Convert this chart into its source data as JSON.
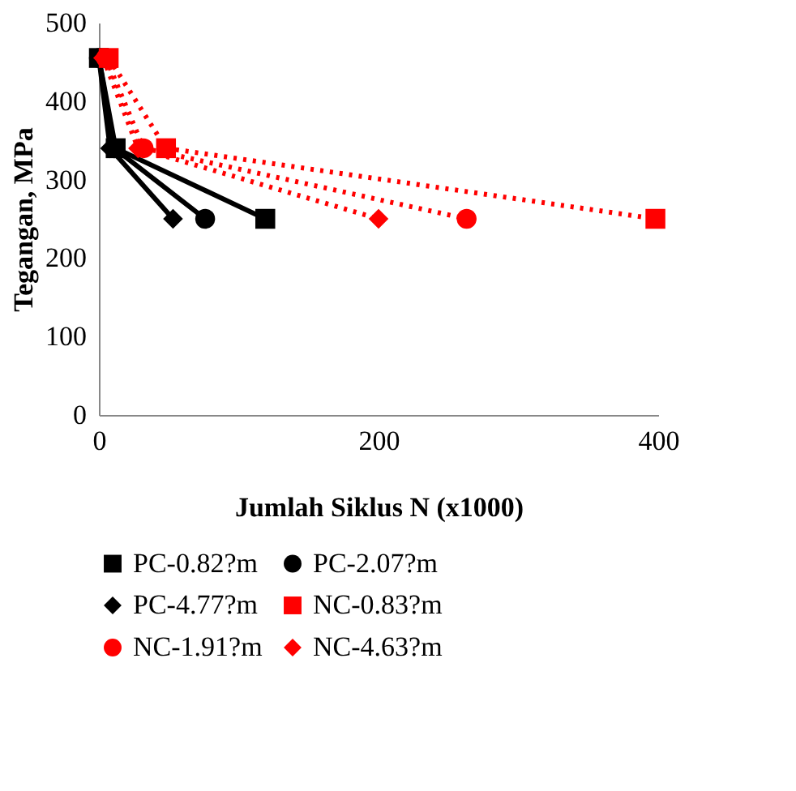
{
  "chart_data": {
    "type": "line",
    "xlabel": "Jumlah Siklus N (x1000)",
    "ylabel": "Tegangan, MPa",
    "xlim": [
      0,
      400
    ],
    "xticks": [
      0,
      200,
      400
    ],
    "ylim": [
      0,
      500
    ],
    "yticks": [
      0,
      100,
      200,
      300,
      400,
      500
    ],
    "grid": false,
    "legend": "bottom",
    "series": [
      {
        "name": "PC-0.82?m",
        "color": "#000000",
        "marker": "square",
        "line_style": "solid",
        "x": [
          0,
          12,
          119
        ],
        "values": [
          455,
          340,
          250
        ]
      },
      {
        "name": "PC-2.07?m",
        "color": "#000000",
        "marker": "circle",
        "line_style": "solid",
        "x": [
          0,
          11,
          76
        ],
        "values": [
          455,
          340,
          250
        ]
      },
      {
        "name": "PC-4.77?m",
        "color": "#000000",
        "marker": "diamond",
        "line_style": "solid",
        "x": [
          0,
          8,
          53
        ],
        "values": [
          455,
          340,
          250
        ]
      },
      {
        "name": "NC-0.83?m",
        "color": "#ff0000",
        "marker": "square",
        "line_style": "dotted",
        "x": [
          7,
          48,
          398
        ],
        "values": [
          455,
          340,
          250
        ]
      },
      {
        "name": "NC-1.91?m",
        "color": "#ff0000",
        "marker": "circle",
        "line_style": "dotted",
        "x": [
          5,
          32,
          263
        ],
        "values": [
          455,
          340,
          250
        ]
      },
      {
        "name": "NC-4.63?m",
        "color": "#ff0000",
        "marker": "diamond",
        "line_style": "dotted",
        "x": [
          3,
          28,
          200
        ],
        "values": [
          455,
          340,
          250
        ]
      }
    ]
  }
}
